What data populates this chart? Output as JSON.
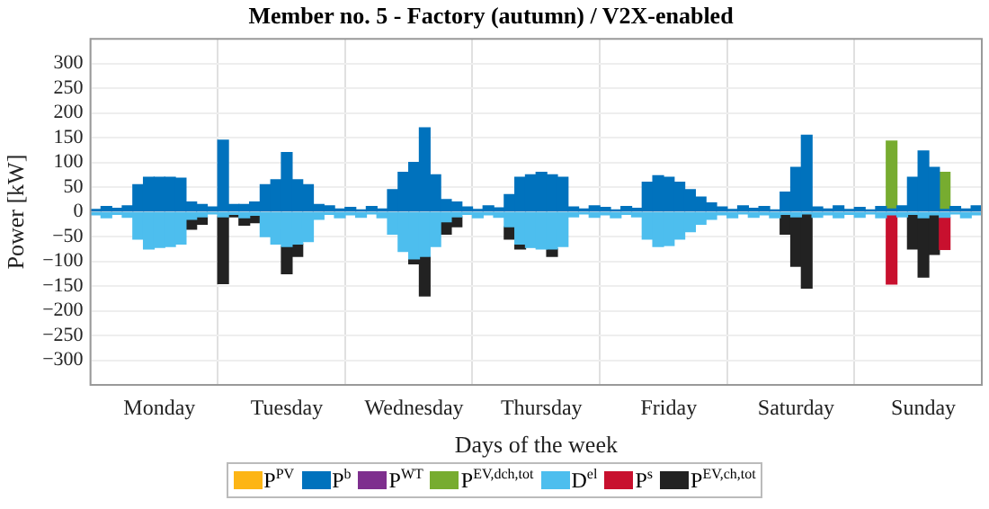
{
  "chart_data": {
    "type": "bar",
    "stacked": true,
    "title": "Member no. 5 - Factory (autumn) / V2X-enabled",
    "xlabel": "Days of the week",
    "ylabel": "Power [kW]",
    "categories": [
      null,
      null,
      null,
      null,
      null,
      null,
      "Monday",
      null,
      null,
      null,
      null,
      null,
      null,
      null,
      null,
      null,
      null,
      null,
      "Tuesday",
      null,
      null,
      null,
      null,
      null,
      null,
      null,
      null,
      null,
      null,
      null,
      "Wednesday",
      null,
      null,
      null,
      null,
      null,
      null,
      null,
      null,
      null,
      null,
      null,
      "Thursday",
      null,
      null,
      null,
      null,
      null,
      null,
      null,
      null,
      null,
      null,
      null,
      "Friday",
      null,
      null,
      null,
      null,
      null,
      null,
      null,
      null,
      null,
      null,
      null,
      "Saturday",
      null,
      null,
      null,
      null,
      null,
      null,
      null,
      null,
      null,
      null,
      null,
      "Sunday",
      null,
      null,
      null,
      null,
      null
    ],
    "ylim": [
      -350,
      350
    ],
    "yticks": [
      -300,
      -250,
      -200,
      -150,
      -100,
      -50,
      0,
      50,
      100,
      150,
      200,
      250,
      300
    ],
    "grid": true,
    "legend": "bottom",
    "series": [
      {
        "name": "P$^{PV}$",
        "color": "#fdb515",
        "values": [
          null,
          null,
          null,
          null,
          null,
          null,
          null,
          null,
          null,
          null,
          null,
          null,
          null,
          null,
          null,
          null,
          null,
          null,
          null,
          null,
          null,
          null,
          null,
          null,
          null,
          null,
          null,
          null,
          null,
          null,
          null,
          null,
          null,
          null,
          null,
          null,
          null,
          null,
          null,
          null,
          null,
          null,
          null,
          null,
          null,
          null,
          null,
          null,
          null,
          null,
          null,
          null,
          null,
          null,
          null,
          null,
          null,
          null,
          null,
          null,
          null,
          null,
          null,
          null,
          null,
          null,
          null,
          null,
          null,
          null,
          null,
          null,
          null,
          null,
          null,
          null,
          null,
          null,
          null,
          null,
          null,
          null,
          null,
          null
        ]
      },
      {
        "name": "P$^{b}$",
        "color": "#0072bd",
        "values": [
          5,
          11,
          7,
          12,
          55,
          70,
          70,
          70,
          68,
          20,
          15,
          10,
          145,
          15,
          15,
          20,
          55,
          65,
          120,
          65,
          55,
          15,
          12,
          6,
          9,
          4,
          11,
          6,
          45,
          80,
          100,
          170,
          75,
          25,
          20,
          10,
          5,
          12,
          8,
          35,
          70,
          75,
          80,
          75,
          70,
          10,
          6,
          12,
          9,
          4,
          11,
          7,
          60,
          73,
          70,
          60,
          45,
          30,
          18,
          10,
          5,
          12,
          7,
          11,
          4,
          40,
          90,
          155,
          10,
          6,
          12,
          5,
          9,
          4,
          11,
          6,
          12,
          70,
          123,
          90,
          5,
          11,
          6,
          12
        ]
      },
      {
        "name": "P$^{WT}$",
        "color": "#7e2f8e",
        "values": [
          null,
          null,
          null,
          null,
          null,
          null,
          null,
          null,
          null,
          null,
          null,
          null,
          null,
          null,
          null,
          null,
          null,
          null,
          null,
          null,
          null,
          null,
          null,
          null,
          null,
          null,
          null,
          null,
          null,
          null,
          null,
          null,
          null,
          null,
          null,
          null,
          null,
          null,
          null,
          null,
          null,
          null,
          null,
          null,
          null,
          null,
          null,
          null,
          null,
          null,
          null,
          null,
          null,
          null,
          null,
          null,
          null,
          null,
          null,
          null,
          null,
          null,
          null,
          null,
          null,
          null,
          null,
          null,
          null,
          null,
          null,
          null,
          null,
          null,
          null,
          null,
          null,
          null,
          null,
          null,
          null,
          null,
          null,
          null
        ]
      },
      {
        "name": "P$^{EV,dch,tot}$",
        "color": "#77ac30",
        "values": [
          null,
          null,
          null,
          null,
          null,
          null,
          null,
          null,
          null,
          null,
          null,
          null,
          null,
          null,
          null,
          null,
          null,
          null,
          null,
          null,
          null,
          null,
          null,
          null,
          null,
          null,
          null,
          null,
          null,
          null,
          null,
          null,
          null,
          null,
          null,
          null,
          null,
          null,
          null,
          null,
          null,
          null,
          null,
          null,
          null,
          null,
          null,
          null,
          null,
          null,
          null,
          null,
          null,
          null,
          null,
          null,
          null,
          null,
          null,
          null,
          null,
          null,
          null,
          null,
          null,
          null,
          null,
          null,
          null,
          null,
          null,
          null,
          null,
          null,
          null,
          137,
          null,
          null,
          null,
          null,
          75,
          null,
          null,
          null
        ]
      },
      {
        "name": "D$^{el}$",
        "color": "#4dbeee",
        "values": [
          -6,
          -12,
          -5,
          -11,
          -55,
          -75,
          -72,
          -70,
          -65,
          -15,
          -10,
          -4,
          -10,
          -5,
          -12,
          -7,
          -50,
          -65,
          -70,
          -65,
          -60,
          -15,
          -5,
          -12,
          -6,
          -11,
          -4,
          -12,
          -45,
          -80,
          -95,
          -90,
          -70,
          -20,
          -10,
          -5,
          -12,
          -6,
          -11,
          -30,
          -65,
          -72,
          -75,
          -75,
          -70,
          -10,
          -4,
          -11,
          -6,
          -12,
          -5,
          -10,
          -55,
          -70,
          -68,
          -55,
          -40,
          -25,
          -15,
          -6,
          -12,
          -4,
          -11,
          -6,
          -12,
          -5,
          -10,
          -4,
          -11,
          -6,
          -12,
          -5,
          -11,
          -4,
          -12,
          -6,
          -10,
          -5,
          -12,
          -6,
          -11,
          -4,
          -12,
          -6
        ]
      },
      {
        "name": "P$^{s}$",
        "color": "#c8102e",
        "values": [
          null,
          null,
          null,
          null,
          null,
          null,
          null,
          null,
          null,
          null,
          null,
          null,
          null,
          null,
          null,
          null,
          null,
          null,
          null,
          null,
          null,
          null,
          null,
          null,
          null,
          null,
          null,
          null,
          null,
          null,
          null,
          null,
          null,
          null,
          null,
          null,
          null,
          null,
          null,
          null,
          null,
          null,
          null,
          null,
          null,
          null,
          null,
          null,
          null,
          null,
          null,
          null,
          null,
          null,
          null,
          null,
          null,
          null,
          null,
          null,
          null,
          null,
          null,
          null,
          null,
          null,
          null,
          null,
          null,
          null,
          null,
          null,
          null,
          null,
          null,
          -140,
          null,
          null,
          null,
          null,
          -65,
          null,
          null,
          null
        ]
      },
      {
        "name": "P$^{EV,ch,tot}$",
        "color": "#222222",
        "values": [
          null,
          null,
          null,
          null,
          null,
          null,
          null,
          null,
          null,
          -20,
          -15,
          null,
          -135,
          -5,
          -15,
          -15,
          null,
          null,
          -55,
          -25,
          null,
          null,
          null,
          null,
          null,
          null,
          null,
          null,
          null,
          null,
          -10,
          -80,
          null,
          -25,
          -20,
          null,
          null,
          null,
          null,
          -25,
          -10,
          null,
          null,
          -15,
          null,
          null,
          null,
          null,
          null,
          null,
          null,
          null,
          null,
          null,
          null,
          null,
          null,
          null,
          null,
          null,
          null,
          null,
          null,
          null,
          null,
          -40,
          -100,
          -150,
          null,
          null,
          null,
          null,
          null,
          null,
          null,
          null,
          null,
          -70,
          -120,
          -80,
          null,
          null,
          null,
          null
        ]
      }
    ]
  }
}
